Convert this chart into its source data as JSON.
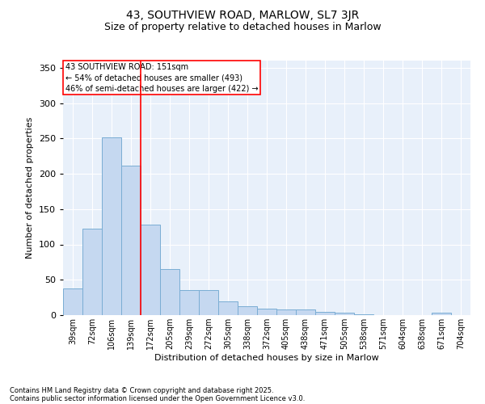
{
  "title_line1": "43, SOUTHVIEW ROAD, MARLOW, SL7 3JR",
  "title_line2": "Size of property relative to detached houses in Marlow",
  "xlabel": "Distribution of detached houses by size in Marlow",
  "ylabel": "Number of detached properties",
  "bar_color": "#c5d8f0",
  "bar_edge_color": "#7aadd4",
  "background_color": "#e8f0fa",
  "grid_color": "#ffffff",
  "categories": [
    "39sqm",
    "72sqm",
    "106sqm",
    "139sqm",
    "172sqm",
    "205sqm",
    "239sqm",
    "272sqm",
    "305sqm",
    "338sqm",
    "372sqm",
    "405sqm",
    "438sqm",
    "471sqm",
    "505sqm",
    "538sqm",
    "571sqm",
    "604sqm",
    "638sqm",
    "671sqm",
    "704sqm"
  ],
  "values": [
    38,
    122,
    252,
    212,
    128,
    65,
    35,
    35,
    19,
    13,
    9,
    8,
    8,
    5,
    3,
    1,
    0,
    0,
    0,
    4,
    0
  ],
  "ylim": [
    0,
    360
  ],
  "yticks": [
    0,
    50,
    100,
    150,
    200,
    250,
    300,
    350
  ],
  "red_line_bin": 3,
  "annotation_title": "43 SOUTHVIEW ROAD: 151sqm",
  "annotation_line2": "← 54% of detached houses are smaller (493)",
  "annotation_line3": "46% of semi-detached houses are larger (422) →",
  "footnote_line1": "Contains HM Land Registry data © Crown copyright and database right 2025.",
  "footnote_line2": "Contains public sector information licensed under the Open Government Licence v3.0.",
  "fig_bg_color": "#ffffff",
  "title1_fontsize": 10,
  "title2_fontsize": 9,
  "ylabel_fontsize": 8,
  "xlabel_fontsize": 8,
  "tick_fontsize": 7,
  "annot_fontsize": 7,
  "footnote_fontsize": 6
}
